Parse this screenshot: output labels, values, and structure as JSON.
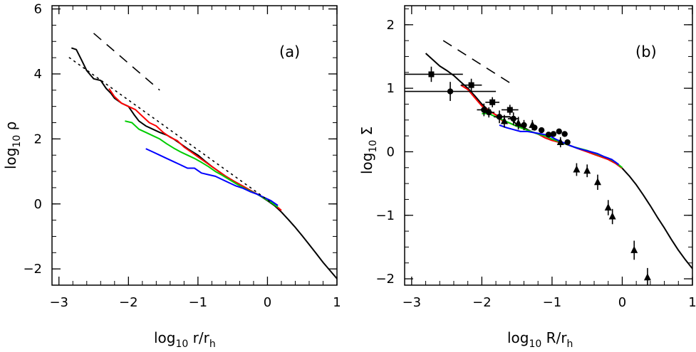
{
  "chart_data": [
    {
      "type": "line",
      "panel": "(a)",
      "xlabel": "log10 r/rh",
      "ylabel": "log10 ρ",
      "xlim": [
        -3.1,
        1.0
      ],
      "ylim": [
        -2.5,
        6.1
      ],
      "xticks": [
        "−3",
        "−2",
        "−1",
        "0",
        "1"
      ],
      "xtick_values": [
        -3,
        -2,
        -1,
        0,
        1
      ],
      "yticks": [
        "−2",
        "0",
        "2",
        "4",
        "6"
      ],
      "ytick_values": [
        -2,
        0,
        2,
        4,
        6
      ],
      "series": [
        {
          "color": "#000000",
          "style": "solid",
          "x": [
            -2.82,
            -2.75,
            -2.68,
            -2.6,
            -2.5,
            -2.4,
            -2.32,
            -2.25,
            -2.2,
            -2.1,
            -2.0,
            -1.92,
            -1.85,
            -1.75,
            -1.65,
            -1.55,
            -1.45,
            -1.35,
            -1.25,
            -1.15,
            -1.0,
            -0.9,
            -0.8,
            -0.7,
            -0.6,
            -0.5,
            -0.4,
            -0.3,
            -0.2,
            -0.1,
            0.0,
            0.1,
            0.2,
            0.3,
            0.4,
            0.5,
            0.6,
            0.7,
            0.8,
            0.9,
            1.0
          ],
          "y": [
            4.8,
            4.75,
            4.45,
            4.1,
            3.85,
            3.8,
            3.55,
            3.4,
            3.25,
            3.1,
            3.0,
            2.75,
            2.55,
            2.4,
            2.3,
            2.2,
            2.12,
            2.0,
            1.85,
            1.7,
            1.5,
            1.32,
            1.15,
            1.0,
            0.85,
            0.72,
            0.6,
            0.48,
            0.36,
            0.24,
            0.1,
            -0.05,
            -0.25,
            -0.48,
            -0.72,
            -0.98,
            -1.25,
            -1.52,
            -1.8,
            -2.05,
            -2.3
          ]
        },
        {
          "color": "#ff0000",
          "style": "solid",
          "x": [
            -2.28,
            -2.2,
            -2.1,
            -2.0,
            -1.9,
            -1.8,
            -1.7,
            -1.6,
            -1.5,
            -1.4,
            -1.3,
            -1.2,
            -1.1,
            -1.0,
            -0.9,
            -0.8,
            -0.7,
            -0.6,
            -0.5,
            -0.4,
            -0.3,
            -0.2,
            -0.1,
            0.0,
            0.1,
            0.2
          ],
          "y": [
            3.55,
            3.3,
            3.1,
            3.0,
            2.9,
            2.7,
            2.5,
            2.4,
            2.2,
            2.05,
            1.95,
            1.75,
            1.6,
            1.45,
            1.3,
            1.15,
            1.0,
            0.85,
            0.72,
            0.6,
            0.48,
            0.36,
            0.25,
            0.12,
            -0.02,
            -0.2
          ]
        },
        {
          "color": "#00cc00",
          "style": "solid",
          "x": [
            -2.05,
            -1.95,
            -1.85,
            -1.75,
            -1.65,
            -1.55,
            -1.45,
            -1.35,
            -1.25,
            -1.15,
            -1.05,
            -0.95,
            -0.85,
            -0.75,
            -0.65,
            -0.55,
            -0.45,
            -0.35,
            -0.25,
            -0.15,
            -0.05,
            0.05,
            0.15
          ],
          "y": [
            2.55,
            2.5,
            2.3,
            2.2,
            2.1,
            2.0,
            1.85,
            1.72,
            1.6,
            1.5,
            1.4,
            1.28,
            1.15,
            1.0,
            0.88,
            0.75,
            0.62,
            0.5,
            0.4,
            0.3,
            0.18,
            0.05,
            -0.1
          ]
        },
        {
          "color": "#0000ff",
          "style": "solid",
          "x": [
            -1.75,
            -1.65,
            -1.55,
            -1.45,
            -1.35,
            -1.25,
            -1.15,
            -1.05,
            -0.95,
            -0.85,
            -0.75,
            -0.65,
            -0.55,
            -0.45,
            -0.35,
            -0.25,
            -0.15,
            -0.05,
            0.05,
            0.15
          ],
          "y": [
            1.7,
            1.6,
            1.5,
            1.4,
            1.3,
            1.2,
            1.1,
            1.1,
            0.95,
            0.9,
            0.85,
            0.75,
            0.65,
            0.55,
            0.48,
            0.38,
            0.3,
            0.2,
            0.1,
            -0.05
          ]
        },
        {
          "color": "#000000",
          "style": "dotted",
          "x": [
            -2.85,
            0.05
          ],
          "y": [
            4.5,
            0.05
          ]
        },
        {
          "color": "#000000",
          "style": "dashed",
          "x": [
            -2.5,
            -1.55
          ],
          "y": [
            5.25,
            3.5
          ]
        }
      ]
    },
    {
      "type": "line",
      "panel": "(b)",
      "xlabel": "log10 R/rh",
      "ylabel": "log10 Σ",
      "xlim": [
        -3.1,
        1.0
      ],
      "ylim": [
        -2.1,
        2.3
      ],
      "xticks": [
        "−3",
        "−2",
        "−1",
        "0",
        "1"
      ],
      "xtick_values": [
        -3,
        -2,
        -1,
        0,
        1
      ],
      "yticks": [
        "−2",
        "−1",
        "0",
        "1",
        "2"
      ],
      "ytick_values": [
        -2,
        -1,
        0,
        1,
        2
      ],
      "series": [
        {
          "color": "#000000",
          "style": "solid",
          "x": [
            -2.8,
            -2.7,
            -2.6,
            -2.5,
            -2.4,
            -2.3,
            -2.2,
            -2.1,
            -2.0,
            -1.9,
            -1.8,
            -1.7,
            -1.6,
            -1.5,
            -1.4,
            -1.3,
            -1.2,
            -1.1,
            -1.0,
            -0.9,
            -0.8,
            -0.7,
            -0.6,
            -0.5,
            -0.4,
            -0.3,
            -0.2,
            -0.1,
            0.0,
            0.1,
            0.2,
            0.3,
            0.4,
            0.5,
            0.6,
            0.7,
            0.8,
            0.9,
            1.0
          ],
          "y": [
            1.55,
            1.45,
            1.35,
            1.28,
            1.2,
            1.1,
            1.0,
            0.88,
            0.75,
            0.65,
            0.58,
            0.55,
            0.55,
            0.42,
            0.38,
            0.32,
            0.28,
            0.22,
            0.18,
            0.15,
            0.12,
            0.08,
            0.04,
            0.0,
            -0.04,
            -0.08,
            -0.12,
            -0.18,
            -0.26,
            -0.38,
            -0.52,
            -0.68,
            -0.85,
            -1.03,
            -1.2,
            -1.38,
            -1.55,
            -1.7,
            -1.84
          ]
        },
        {
          "color": "#ff0000",
          "style": "solid",
          "x": [
            -2.3,
            -2.2,
            -2.1,
            -2.0,
            -1.9,
            -1.8,
            -1.7,
            -1.6,
            -1.5,
            -1.4,
            -1.3,
            -1.2,
            -1.1,
            -1.0,
            -0.9,
            -0.8,
            -0.7,
            -0.6,
            -0.5,
            -0.4,
            -0.3,
            -0.2,
            -0.1,
            0.0
          ],
          "y": [
            1.05,
            0.98,
            0.85,
            0.72,
            0.65,
            0.58,
            0.48,
            0.45,
            0.4,
            0.36,
            0.32,
            0.28,
            0.22,
            0.18,
            0.15,
            0.12,
            0.08,
            0.04,
            0.0,
            -0.04,
            -0.08,
            -0.12,
            -0.18,
            -0.26
          ]
        },
        {
          "color": "#00cc00",
          "style": "solid",
          "x": [
            -2.0,
            -1.9,
            -1.8,
            -1.7,
            -1.6,
            -1.5,
            -1.4,
            -1.3,
            -1.2,
            -1.1,
            -1.0,
            -0.9,
            -0.8,
            -0.7,
            -0.6,
            -0.5,
            -0.4,
            -0.3,
            -0.2,
            -0.1,
            0.0
          ],
          "y": [
            0.6,
            0.6,
            0.55,
            0.5,
            0.45,
            0.4,
            0.36,
            0.32,
            0.28,
            0.25,
            0.2,
            0.16,
            0.12,
            0.08,
            0.05,
            0.02,
            -0.02,
            -0.06,
            -0.1,
            -0.16,
            -0.25
          ]
        },
        {
          "color": "#0000ff",
          "style": "solid",
          "x": [
            -1.75,
            -1.65,
            -1.55,
            -1.45,
            -1.35,
            -1.25,
            -1.15,
            -1.05,
            -0.95,
            -0.85,
            -0.75,
            -0.65,
            -0.55,
            -0.45,
            -0.35,
            -0.25,
            -0.15,
            -0.05
          ],
          "y": [
            0.42,
            0.38,
            0.35,
            0.32,
            0.32,
            0.3,
            0.28,
            0.26,
            0.2,
            0.15,
            0.1,
            0.06,
            0.03,
            0.0,
            -0.03,
            -0.08,
            -0.12,
            -0.2
          ]
        },
        {
          "color": "#000000",
          "style": "dashed",
          "x": [
            -2.55,
            -1.55
          ],
          "y": [
            1.75,
            1.05
          ]
        }
      ],
      "observations": [
        {
          "marker": "square",
          "x": -2.72,
          "y": 1.22,
          "xerr": 0.45,
          "yerr": 0.12
        },
        {
          "marker": "square",
          "x": -2.15,
          "y": 1.05,
          "xerr": 0.15,
          "yerr": 0.1
        },
        {
          "marker": "square",
          "x": -1.85,
          "y": 0.78,
          "xerr": 0.1,
          "yerr": 0.08
        },
        {
          "marker": "square",
          "x": -1.6,
          "y": 0.66,
          "xerr": 0.12,
          "yerr": 0.08
        },
        {
          "marker": "circle",
          "x": -2.45,
          "y": 0.95,
          "xerr": 0.65,
          "yerr": 0.15
        },
        {
          "marker": "circle",
          "x": -1.97,
          "y": 0.66,
          "xerr": 0.1,
          "yerr": 0.1
        },
        {
          "marker": "circle",
          "x": -1.9,
          "y": 0.62,
          "xerr": 0.08,
          "yerr": 0.08
        },
        {
          "marker": "circle",
          "x": -1.75,
          "y": 0.55,
          "xerr": 0.08,
          "yerr": 0.1
        },
        {
          "marker": "circle",
          "x": -1.55,
          "y": 0.52,
          "xerr": 0.08,
          "yerr": 0.1
        },
        {
          "marker": "circle",
          "x": -1.4,
          "y": 0.42,
          "xerr": 0.0,
          "yerr": 0.08
        },
        {
          "marker": "circle",
          "x": -1.25,
          "y": 0.38,
          "xerr": 0.0,
          "yerr": 0.0
        },
        {
          "marker": "circle",
          "x": -1.15,
          "y": 0.34,
          "xerr": 0.0,
          "yerr": 0.0
        },
        {
          "marker": "circle",
          "x": -1.05,
          "y": 0.27,
          "xerr": 0.0,
          "yerr": 0.0
        },
        {
          "marker": "circle",
          "x": -0.98,
          "y": 0.28,
          "xerr": 0.0,
          "yerr": 0.0
        },
        {
          "marker": "circle",
          "x": -0.9,
          "y": 0.32,
          "xerr": 0.0,
          "yerr": 0.0
        },
        {
          "marker": "circle",
          "x": -0.82,
          "y": 0.28,
          "xerr": 0.0,
          "yerr": 0.0
        },
        {
          "marker": "circle",
          "x": -0.78,
          "y": 0.15,
          "xerr": 0.0,
          "yerr": 0.0
        },
        {
          "marker": "triangle",
          "x": -1.68,
          "y": 0.48,
          "xerr": 0.0,
          "yerr": 0.1
        },
        {
          "marker": "triangle",
          "x": -1.48,
          "y": 0.45,
          "xerr": 0.0,
          "yerr": 0.1
        },
        {
          "marker": "triangle",
          "x": -1.28,
          "y": 0.42,
          "xerr": 0.0,
          "yerr": 0.08
        },
        {
          "marker": "triangle",
          "x": -0.88,
          "y": 0.15,
          "xerr": 0.0,
          "yerr": 0.08
        },
        {
          "marker": "triangle",
          "x": -0.65,
          "y": -0.28,
          "xerr": 0.0,
          "yerr": 0.1
        },
        {
          "marker": "triangle",
          "x": -0.5,
          "y": -0.3,
          "xerr": 0.0,
          "yerr": 0.1
        },
        {
          "marker": "triangle",
          "x": -0.35,
          "y": -0.48,
          "xerr": 0.0,
          "yerr": 0.12
        },
        {
          "marker": "triangle",
          "x": -0.2,
          "y": -0.88,
          "xerr": 0.0,
          "yerr": 0.12
        },
        {
          "marker": "triangle",
          "x": -0.14,
          "y": -1.02,
          "xerr": 0.0,
          "yerr": 0.12
        },
        {
          "marker": "triangle",
          "x": 0.17,
          "y": -1.55,
          "xerr": 0.0,
          "yerr": 0.15
        },
        {
          "marker": "triangle",
          "x": 0.36,
          "y": -1.98,
          "xerr": 0.0,
          "yerr": 0.15
        }
      ]
    }
  ],
  "panels": {
    "a": {
      "tag": "(a)",
      "xlabel_main": "log",
      "xlabel_sub": "10",
      "xlabel_rest": " r/r",
      "xlabel_sub2": "h",
      "ylabel_main": "log",
      "ylabel_sub": "10",
      "ylabel_rest": " ρ"
    },
    "b": {
      "tag": "(b)",
      "xlabel_main": "log",
      "xlabel_sub": "10",
      "xlabel_rest": " R/r",
      "xlabel_sub2": "h",
      "ylabel_main": "log",
      "ylabel_sub": "10",
      "ylabel_rest": " Σ"
    }
  }
}
